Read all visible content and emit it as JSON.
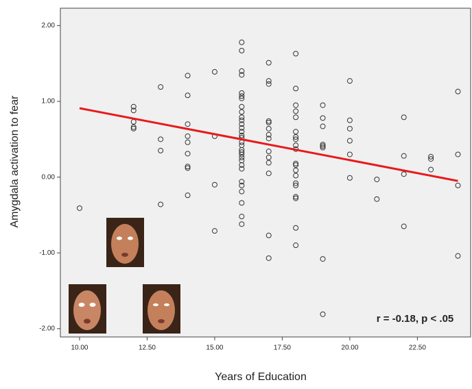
{
  "chart_data": {
    "type": "scatter",
    "x_label": "Years of Education",
    "y_label": "Amygdala activation to fear",
    "annotation": "r = -0.18, p < .05",
    "xlim": [
      9.29,
      24.47
    ],
    "ylim": [
      -2.11,
      2.23
    ],
    "xticks": [
      {
        "value": 10,
        "label": "10.00"
      },
      {
        "value": 12.5,
        "label": "12.50"
      },
      {
        "value": 15,
        "label": "15.00"
      },
      {
        "value": 17.5,
        "label": "17.50"
      },
      {
        "value": 20,
        "label": "20.00"
      },
      {
        "value": 22.5,
        "label": "22.50"
      }
    ],
    "yticks": [
      {
        "value": 2,
        "label": "2.00"
      },
      {
        "value": 1,
        "label": "1.00"
      },
      {
        "value": 0,
        "label": "0.00"
      },
      {
        "value": -1,
        "label": "-1.00"
      },
      {
        "value": -2,
        "label": "-2.00"
      }
    ],
    "color": "#333333",
    "x": [
      10,
      12,
      12,
      12,
      12,
      12,
      13,
      13,
      13,
      13,
      14,
      14,
      14,
      14,
      14,
      14,
      14,
      14,
      14,
      15,
      15,
      15,
      15,
      16,
      16,
      16,
      16,
      16,
      16,
      16,
      16,
      16,
      16,
      16,
      16,
      16,
      16,
      16,
      16,
      16,
      16,
      16,
      16,
      16,
      16,
      16,
      16,
      16,
      16,
      16,
      16,
      16,
      16,
      16,
      17,
      17,
      17,
      17,
      17,
      17,
      17,
      17,
      17,
      17,
      17,
      17,
      17,
      17,
      18,
      18,
      18,
      18,
      18,
      18,
      18,
      18,
      18,
      18,
      18,
      18,
      18,
      18,
      18,
      18,
      18,
      18,
      18,
      18,
      19,
      19,
      19,
      19,
      19,
      19,
      19,
      19,
      20,
      20,
      20,
      20,
      20,
      20,
      21,
      21,
      22,
      22,
      22,
      22,
      23,
      23,
      23,
      24,
      24,
      24,
      24
    ],
    "values": [
      -0.41,
      0.93,
      0.88,
      0.73,
      0.66,
      0.64,
      1.19,
      0.5,
      0.35,
      -0.36,
      1.34,
      1.08,
      0.7,
      0.54,
      0.46,
      0.31,
      0.14,
      0.12,
      -0.24,
      1.39,
      0.54,
      -0.1,
      -0.71,
      1.78,
      1.67,
      1.4,
      1.35,
      1.11,
      1.07,
      1.04,
      0.93,
      0.86,
      0.79,
      0.75,
      0.7,
      0.65,
      0.6,
      0.55,
      0.52,
      0.46,
      0.42,
      0.36,
      0.33,
      0.3,
      0.26,
      0.22,
      0.16,
      0.11,
      -0.06,
      -0.11,
      -0.19,
      -0.34,
      -0.52,
      -0.62,
      1.51,
      1.27,
      1.23,
      0.74,
      0.72,
      0.64,
      0.56,
      0.51,
      0.34,
      0.26,
      0.19,
      0.05,
      -0.77,
      -1.07,
      1.63,
      1.17,
      0.95,
      0.87,
      0.79,
      0.6,
      0.53,
      0.5,
      0.42,
      0.37,
      0.18,
      0.16,
      0.09,
      0.02,
      -0.08,
      -0.11,
      -0.26,
      -0.28,
      -0.67,
      -0.9,
      0.95,
      0.78,
      0.67,
      0.43,
      0.41,
      0.39,
      -1.08,
      -1.81,
      1.27,
      0.75,
      0.64,
      0.48,
      0.3,
      -0.01,
      -0.03,
      -0.29,
      0.79,
      0.28,
      0.04,
      -0.65,
      0.27,
      0.24,
      0.1,
      1.13,
      0.3,
      -0.11,
      -1.04
    ],
    "fit_line": {
      "x": [
        10,
        24
      ],
      "y": [
        0.91,
        -0.05
      ],
      "color": "#e8191c"
    }
  }
}
